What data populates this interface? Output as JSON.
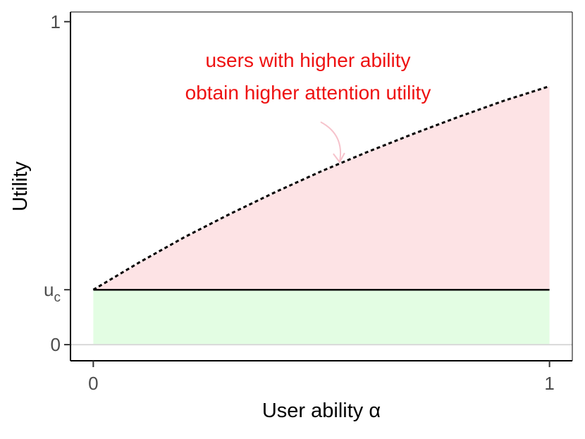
{
  "chart_data": {
    "type": "area",
    "xlabel": "User ability α",
    "ylabel": "Utility",
    "xlim": [
      -0.05,
      1.05
    ],
    "ylim": [
      -0.05,
      1.03
    ],
    "x_ticks": [
      {
        "value": 0,
        "label": "0"
      },
      {
        "value": 1,
        "label": "1"
      }
    ],
    "y_ticks": [
      {
        "value": 0,
        "label": "0"
      },
      {
        "value": 0.17,
        "label": "u",
        "subscript": "c"
      },
      {
        "value": 1,
        "label": "1"
      }
    ],
    "baseline": {
      "y": 0,
      "color": "#d9d9d9"
    },
    "series": [
      {
        "style": "solid",
        "color": "#000000",
        "fill": "#e3fde3",
        "fill_to": 0,
        "points": [
          {
            "x": 0,
            "y": 0.17
          },
          {
            "x": 1,
            "y": 0.17
          }
        ]
      },
      {
        "style": "dotted",
        "color": "#000000",
        "fill": "#fde3e5",
        "fill_to": 0.17,
        "points": [
          {
            "x": 0,
            "y": 0.17
          },
          {
            "x": 0.1,
            "y": 0.254
          },
          {
            "x": 0.2,
            "y": 0.333
          },
          {
            "x": 0.3,
            "y": 0.405
          },
          {
            "x": 0.4,
            "y": 0.473
          },
          {
            "x": 0.5,
            "y": 0.537
          },
          {
            "x": 0.6,
            "y": 0.596
          },
          {
            "x": 0.7,
            "y": 0.652
          },
          {
            "x": 0.8,
            "y": 0.705
          },
          {
            "x": 0.9,
            "y": 0.755
          },
          {
            "x": 1,
            "y": 0.8
          }
        ]
      }
    ],
    "annotation": {
      "lines": [
        "users with higher ability",
        "obtain higher attention utility"
      ],
      "color": "#ee1111",
      "arrow_color": "#f6c3cc",
      "arrow_target": {
        "x": 0.54,
        "y": 0.565
      }
    }
  }
}
